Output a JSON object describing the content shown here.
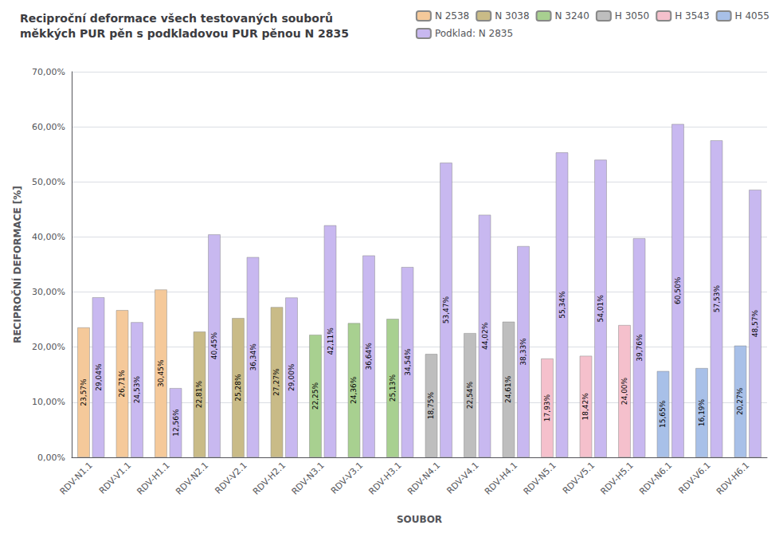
{
  "chart_data": {
    "type": "bar",
    "title": "Reciproční deformace všech testovaných souborů\nměkkých PUR pěn s podkladovou PUR pěnou N 2835",
    "xlabel": "SOUBOR",
    "ylabel": "RECIPROČNÍ DEFORMACE [%]",
    "categories": [
      "RDV-N1.1",
      "RDV-V1.1",
      "RDV-H1.1",
      "RDV-N2.1",
      "RDV-V2.1",
      "RDV-H2.1",
      "RDV-N3.1",
      "RDV-V3.1",
      "RDV-H3.1",
      "RDV-N4.1",
      "RDV-V4.1",
      "RDV-H4.1",
      "RDV-N5.1",
      "RDV-V5.1",
      "RDV-H5.1",
      "RDV-N6.1",
      "RDV-V6.1",
      "RDV-H6.1"
    ],
    "series": [
      {
        "name": "N 2538",
        "color": "#F5C99A",
        "values": [
          0.2357,
          0.2671,
          0.3045,
          null,
          null,
          null,
          null,
          null,
          null,
          null,
          null,
          null,
          null,
          null,
          null,
          null,
          null,
          null
        ],
        "value_labels": [
          "23,57%",
          "26,71%",
          "30,45%",
          null,
          null,
          null,
          null,
          null,
          null,
          null,
          null,
          null,
          null,
          null,
          null,
          null,
          null,
          null
        ]
      },
      {
        "name": "N 3038",
        "color": "#C9BB87",
        "values": [
          null,
          null,
          null,
          0.2281,
          0.2528,
          0.2727,
          null,
          null,
          null,
          null,
          null,
          null,
          null,
          null,
          null,
          null,
          null,
          null
        ],
        "value_labels": [
          null,
          null,
          null,
          "22,81%",
          "25,28%",
          "27,27%",
          null,
          null,
          null,
          null,
          null,
          null,
          null,
          null,
          null,
          null,
          null,
          null
        ]
      },
      {
        "name": "N 3240",
        "color": "#A8D090",
        "values": [
          null,
          null,
          null,
          null,
          null,
          null,
          0.2225,
          0.2436,
          0.2513,
          null,
          null,
          null,
          null,
          null,
          null,
          null,
          null,
          null
        ],
        "value_labels": [
          null,
          null,
          null,
          null,
          null,
          null,
          "22,25%",
          "24,36%",
          "25,13%",
          null,
          null,
          null,
          null,
          null,
          null,
          null,
          null,
          null
        ]
      },
      {
        "name": "H 3050",
        "color": "#BEBEBE",
        "values": [
          null,
          null,
          null,
          null,
          null,
          null,
          null,
          null,
          null,
          0.1875,
          0.2254,
          0.2461,
          null,
          null,
          null,
          null,
          null,
          null
        ],
        "value_labels": [
          null,
          null,
          null,
          null,
          null,
          null,
          null,
          null,
          null,
          "18,75%",
          "22,54%",
          "24,61%",
          null,
          null,
          null,
          null,
          null,
          null
        ]
      },
      {
        "name": "H 3543",
        "color": "#F5C0CC",
        "values": [
          null,
          null,
          null,
          null,
          null,
          null,
          null,
          null,
          null,
          null,
          null,
          null,
          0.1793,
          0.1842,
          0.24,
          null,
          null,
          null
        ],
        "value_labels": [
          null,
          null,
          null,
          null,
          null,
          null,
          null,
          null,
          null,
          null,
          null,
          null,
          "17,93%",
          "18,42%",
          "24,00%",
          null,
          null,
          null
        ]
      },
      {
        "name": "H 4055",
        "color": "#A8C0E8",
        "values": [
          null,
          null,
          null,
          null,
          null,
          null,
          null,
          null,
          null,
          null,
          null,
          null,
          null,
          null,
          null,
          0.1565,
          0.1619,
          0.2027
        ],
        "value_labels": [
          null,
          null,
          null,
          null,
          null,
          null,
          null,
          null,
          null,
          null,
          null,
          null,
          null,
          null,
          null,
          "15,65%",
          "16,19%",
          "20,27%"
        ]
      },
      {
        "name": "Podklad: N 2835",
        "color": "#C8B8F0",
        "values": [
          0.2904,
          0.2453,
          0.1256,
          0.4045,
          0.3634,
          0.29,
          0.4211,
          0.3664,
          0.3454,
          0.5347,
          0.4402,
          0.3833,
          0.5534,
          0.5401,
          0.3976,
          0.605,
          0.5753,
          0.4857
        ],
        "value_labels": [
          "29,04%",
          "24,53%",
          "12,56%",
          "40,45%",
          "36,34%",
          "29,00%",
          "42,11%",
          "36,64%",
          "34,54%",
          "53,47%",
          "44,02%",
          "38,33%",
          "55,34%",
          "54,01%",
          "39,76%",
          "60,50%",
          "57,53%",
          "48,57%"
        ]
      }
    ],
    "ylim": [
      0.0,
      0.7
    ],
    "yticks": [
      {
        "value": 0.0,
        "label": "0,00%"
      },
      {
        "value": 0.1,
        "label": "10,00%"
      },
      {
        "value": 0.2,
        "label": "20,00%"
      },
      {
        "value": 0.3,
        "label": "30,00%"
      },
      {
        "value": 0.4,
        "label": "40,00%"
      },
      {
        "value": 0.5,
        "label": "50,00%"
      },
      {
        "value": 0.6,
        "label": "60,00%"
      },
      {
        "value": 0.7,
        "label": "70,00%"
      }
    ],
    "grid": true,
    "legend": "upper right",
    "data_labels": true
  }
}
